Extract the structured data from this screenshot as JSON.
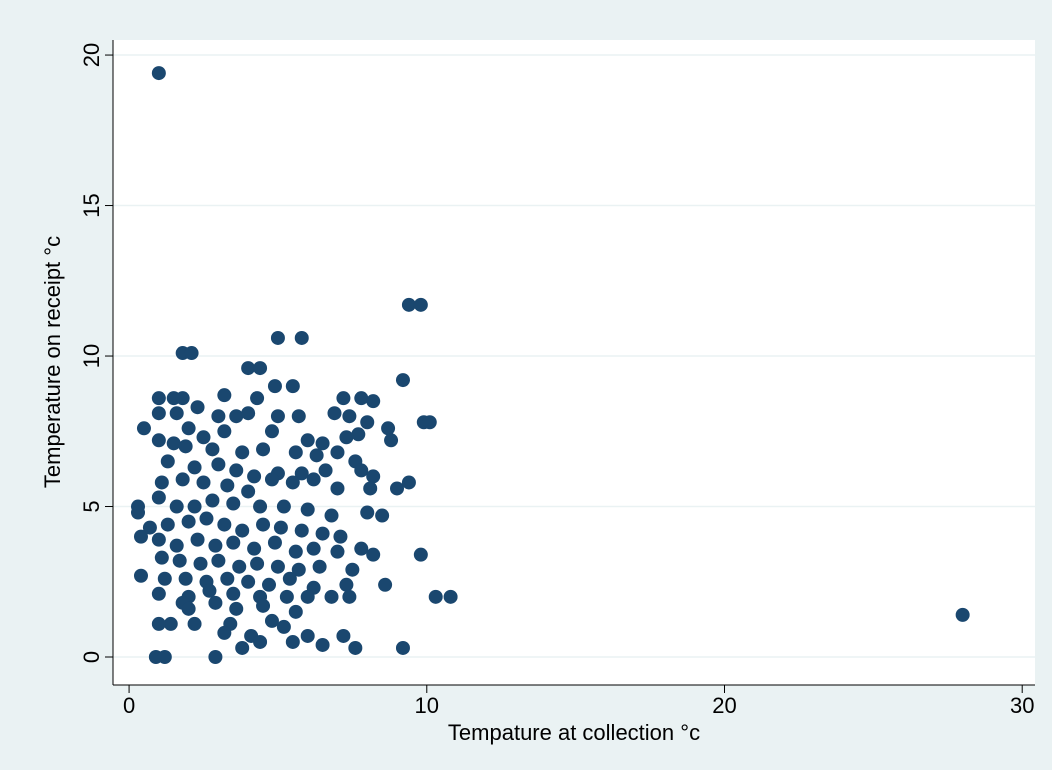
{
  "chart_data": {
    "type": "scatter",
    "x_label": "Tempature at collection °c",
    "y_label": "Temperature on receipt °c",
    "xlim": [
      -0.54,
      30.43
    ],
    "ylim": [
      -0.93,
      20.5
    ],
    "xticks": [
      0,
      10,
      20,
      30
    ],
    "yticks": [
      0,
      5,
      10,
      15,
      20
    ],
    "grid": true,
    "series": [
      {
        "color": "#1a476f",
        "x": [
          1,
          28,
          9.4,
          9.8,
          1.8,
          2.1,
          5,
          5.8,
          4,
          4.4,
          9.2,
          4.9,
          5.5,
          3.2,
          1,
          1.5,
          1.8,
          4.3,
          7.2,
          7.8,
          8.2,
          0.5,
          1,
          1.6,
          2.3,
          3,
          3.6,
          4,
          5,
          5.7,
          6.9,
          7.4,
          8.7,
          9.9,
          10.1,
          8,
          1,
          2,
          2.5,
          3.2,
          4.8,
          6,
          6.5,
          7.3,
          7.7,
          8.8,
          1.5,
          1.9,
          2.8,
          3.8,
          4.5,
          5.6,
          6.3,
          7,
          7.6,
          1.3,
          2.2,
          3,
          3.6,
          4.2,
          5,
          5.8,
          6.6,
          7.8,
          8.2,
          1.1,
          1.8,
          2.5,
          3.3,
          4,
          4.8,
          5.5,
          6.2,
          7,
          8.1,
          9,
          9.4,
          0.3,
          1,
          1.6,
          2.2,
          2.8,
          3.5,
          4.4,
          5.2,
          6,
          6.8,
          8,
          8.5,
          0.3,
          0.7,
          1.3,
          2,
          2.6,
          3.2,
          3.8,
          4.5,
          5.1,
          5.8,
          6.5,
          7.1,
          0.4,
          1,
          1.6,
          2.3,
          2.9,
          3.5,
          4.2,
          4.9,
          5.6,
          6.2,
          7,
          7.8,
          8.2,
          9.8,
          1.1,
          1.7,
          2.4,
          3,
          3.7,
          4.3,
          5,
          5.7,
          6.4,
          7.5,
          0.4,
          1.2,
          1.9,
          2.6,
          3.3,
          4,
          4.7,
          5.4,
          6.2,
          7.3,
          8.6,
          1,
          2,
          2.7,
          3.5,
          4.4,
          5.3,
          6,
          6.8,
          7.4,
          10.3,
          10.8,
          1.8,
          2.9,
          3.6,
          4.5,
          5.6,
          2,
          1.4,
          1,
          2.2,
          3.4,
          4.8,
          5.2,
          3.2,
          4.1,
          6,
          7.2,
          3.8,
          4.4,
          5.5,
          6.5,
          7.6,
          9.2,
          0.9,
          1.2,
          2.9
        ],
        "values": [
          19.4,
          1.4,
          11.7,
          11.7,
          10.1,
          10.1,
          10.6,
          10.6,
          9.6,
          9.6,
          9.2,
          9,
          9,
          8.7,
          8.6,
          8.6,
          8.6,
          8.6,
          8.6,
          8.6,
          8.5,
          7.6,
          8.1,
          8.1,
          8.3,
          8,
          8,
          8.1,
          8,
          8,
          8.1,
          8,
          7.6,
          7.8,
          7.8,
          7.8,
          7.2,
          7.6,
          7.3,
          7.5,
          7.5,
          7.2,
          7.1,
          7.3,
          7.4,
          7.2,
          7.1,
          7,
          6.9,
          6.8,
          6.9,
          6.8,
          6.7,
          6.8,
          6.5,
          6.5,
          6.3,
          6.4,
          6.2,
          6,
          6.1,
          6.1,
          6.2,
          6.2,
          6,
          5.8,
          5.9,
          5.8,
          5.7,
          5.5,
          5.9,
          5.8,
          5.9,
          5.6,
          5.6,
          5.6,
          5.8,
          5,
          5.3,
          5,
          5,
          5.2,
          5.1,
          5,
          5,
          4.9,
          4.7,
          4.8,
          4.7,
          4.8,
          4.3,
          4.4,
          4.5,
          4.6,
          4.4,
          4.2,
          4.4,
          4.3,
          4.2,
          4.1,
          4,
          4,
          3.9,
          3.7,
          3.9,
          3.7,
          3.8,
          3.6,
          3.8,
          3.5,
          3.6,
          3.5,
          3.6,
          3.4,
          3.4,
          3.3,
          3.2,
          3.1,
          3.2,
          3,
          3.1,
          3,
          2.9,
          3,
          2.9,
          2.7,
          2.6,
          2.6,
          2.5,
          2.6,
          2.5,
          2.4,
          2.6,
          2.3,
          2.4,
          2.4,
          2.1,
          2,
          2.2,
          2.1,
          2,
          2,
          2,
          2,
          2,
          2,
          2,
          1.8,
          1.8,
          1.6,
          1.7,
          1.5,
          1.6,
          1.1,
          1.1,
          1.1,
          1.1,
          1.2,
          1,
          0.8,
          0.7,
          0.7,
          0.7,
          0.3,
          0.5,
          0.5,
          0.4,
          0.3,
          0.3,
          0,
          0,
          0
        ]
      }
    ]
  }
}
